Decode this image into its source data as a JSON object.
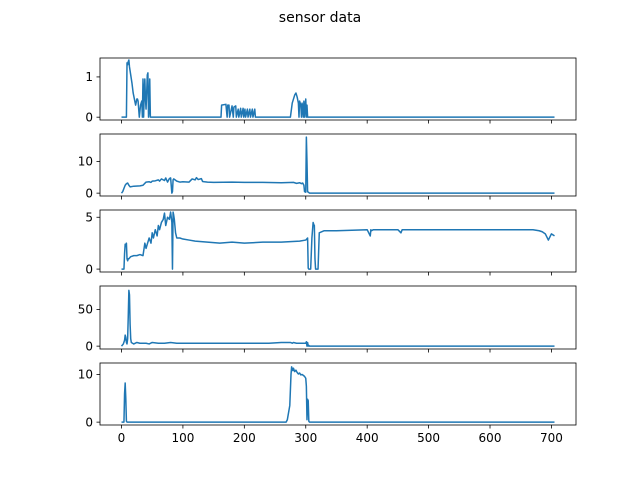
{
  "figure": {
    "title": "sensor data"
  },
  "style": {
    "series_color": "#1f77b4",
    "axis_color": "#000000",
    "background": "#ffffff"
  },
  "chart_data": [
    {
      "type": "line",
      "title": "",
      "xlabel": "",
      "ylabel": "",
      "grid": false,
      "xlim": [
        -35,
        740
      ],
      "ylim": [
        -0.07,
        1.47
      ],
      "xticks": [
        0,
        100,
        200,
        300,
        400,
        500,
        600,
        700
      ],
      "show_x_tick_labels": false,
      "yticks": [
        0,
        1
      ],
      "ytick_labels": [
        "0",
        "1"
      ],
      "series": [
        {
          "x": [
            0,
            8,
            9,
            10,
            11,
            12,
            13,
            15,
            17,
            19,
            21,
            23,
            25,
            26,
            27,
            29,
            31,
            33,
            34,
            35,
            36,
            37,
            38,
            39,
            40,
            41,
            42,
            43,
            44,
            45,
            46,
            47,
            48,
            60,
            100,
            130,
            150,
            162,
            163,
            170,
            172,
            173,
            175,
            176,
            180,
            182,
            183,
            186,
            187,
            190,
            191,
            194,
            195,
            198,
            199,
            201,
            202,
            205,
            206,
            209,
            210,
            213,
            214,
            217,
            218,
            270,
            275,
            278,
            280,
            282,
            284,
            286,
            288,
            289,
            290,
            292,
            293,
            294,
            295,
            296,
            297,
            298,
            300,
            301,
            302,
            303,
            304,
            305,
            310,
            400,
            500,
            600,
            700,
            705
          ],
          "y": [
            0,
            0,
            1.35,
            1.3,
            1.38,
            1.42,
            1.25,
            1.05,
            0.85,
            0.6,
            0.45,
            0.3,
            0.45,
            0.45,
            0.4,
            0.0,
            0.3,
            0.4,
            0.0,
            0.95,
            0.0,
            0.6,
            0.95,
            0.45,
            0.2,
            0.6,
            1.05,
            1.1,
            0.0,
            0.2,
            0.95,
            0.0,
            0,
            0,
            0,
            0,
            0,
            0,
            0.3,
            0.32,
            0.0,
            0.3,
            0.3,
            0.0,
            0.28,
            0.0,
            0.25,
            0.28,
            0.0,
            0.2,
            0.0,
            0.22,
            0.0,
            0.22,
            0.0,
            0.2,
            0.0,
            0.2,
            0.0,
            0.2,
            0.0,
            0.2,
            0.0,
            0.2,
            0.0,
            0.0,
            0.0,
            0.35,
            0.45,
            0.55,
            0.6,
            0.5,
            0.35,
            0.0,
            0.4,
            0.3,
            0.0,
            0.35,
            0.25,
            0.0,
            0.4,
            0.0,
            0.45,
            0.0,
            0.3,
            0.0,
            0.0,
            0.0,
            0,
            0,
            0,
            0,
            0,
            0
          ]
        }
      ]
    },
    {
      "type": "line",
      "title": "",
      "xlabel": "",
      "ylabel": "",
      "grid": false,
      "xlim": [
        -35,
        740
      ],
      "ylim": [
        -0.9,
        18.7
      ],
      "xticks": [
        0,
        100,
        200,
        300,
        400,
        500,
        600,
        700
      ],
      "show_x_tick_labels": false,
      "yticks": [
        0,
        10
      ],
      "ytick_labels": [
        "0",
        "10"
      ],
      "series": [
        {
          "x": [
            0,
            2,
            4,
            6,
            8,
            10,
            12,
            14,
            20,
            30,
            35,
            40,
            45,
            48,
            50,
            55,
            60,
            62,
            65,
            70,
            72,
            75,
            78,
            80,
            82,
            83,
            84,
            85,
            90,
            95,
            100,
            110,
            115,
            120,
            122,
            125,
            130,
            132,
            135,
            140,
            150,
            180,
            200,
            230,
            260,
            280,
            285,
            290,
            293,
            295,
            297,
            298,
            300,
            301,
            302,
            303,
            304,
            305,
            306,
            308,
            310,
            320,
            400,
            500,
            600,
            700,
            705
          ],
          "y": [
            0,
            0.5,
            1.5,
            2.5,
            3.0,
            3.2,
            2.5,
            2.0,
            2.2,
            2.3,
            2.5,
            3.5,
            3.6,
            3.4,
            3.8,
            3.9,
            4.2,
            3.8,
            4.5,
            4.0,
            4.8,
            3.5,
            4.6,
            4.8,
            0.0,
            0.5,
            4.2,
            4.5,
            3.8,
            3.5,
            3.6,
            3.5,
            4.5,
            4.2,
            4.9,
            4.3,
            4.6,
            3.7,
            3.6,
            3.5,
            3.4,
            3.5,
            3.4,
            3.4,
            3.3,
            3.4,
            3.1,
            3.3,
            3.0,
            3.2,
            2.5,
            0.5,
            0.3,
            17.7,
            10.0,
            0.5,
            0.3,
            0.2,
            0.0,
            0.0,
            0.0,
            0.0,
            0.0,
            0.0,
            0.0,
            0.0,
            0.0
          ]
        }
      ]
    },
    {
      "type": "line",
      "title": "",
      "xlabel": "",
      "ylabel": "",
      "grid": false,
      "xlim": [
        -35,
        740
      ],
      "ylim": [
        -0.28,
        5.7
      ],
      "xticks": [
        0,
        100,
        200,
        300,
        400,
        500,
        600,
        700
      ],
      "show_x_tick_labels": false,
      "yticks": [
        0,
        5
      ],
      "ytick_labels": [
        "0",
        "5"
      ],
      "series": [
        {
          "x": [
            0,
            4,
            5,
            6,
            7,
            8,
            9,
            10,
            11,
            12,
            15,
            20,
            25,
            30,
            35,
            38,
            40,
            42,
            45,
            48,
            50,
            52,
            55,
            58,
            60,
            62,
            65,
            68,
            70,
            72,
            75,
            78,
            80,
            82,
            83,
            84,
            85,
            86,
            88,
            90,
            95,
            100,
            110,
            120,
            140,
            160,
            180,
            200,
            230,
            260,
            290,
            300,
            303,
            304,
            305,
            306,
            308,
            310,
            312,
            313,
            314,
            315,
            316,
            318,
            320,
            322,
            330,
            350,
            400,
            405,
            406,
            407,
            410,
            450,
            455,
            457,
            460,
            500,
            600,
            650,
            660,
            670,
            680,
            685,
            690,
            695,
            700,
            705
          ],
          "y": [
            0,
            0,
            1.5,
            2.4,
            2.2,
            2.5,
            1.0,
            0.8,
            1.0,
            1.0,
            1.2,
            1.3,
            1.3,
            1.4,
            1.3,
            2.5,
            2.0,
            2.4,
            3.0,
            2.5,
            3.5,
            3.0,
            3.8,
            3.2,
            4.2,
            3.8,
            4.5,
            4.8,
            5.4,
            4.2,
            5.0,
            4.8,
            5.5,
            4.5,
            0.0,
            5.5,
            5.2,
            4.8,
            3.5,
            3.0,
            3.0,
            2.9,
            2.8,
            2.7,
            2.6,
            2.5,
            2.6,
            2.5,
            2.6,
            2.6,
            2.7,
            2.8,
            3.0,
            0.1,
            0.0,
            0.0,
            0.0,
            3.0,
            4.5,
            4.3,
            4.2,
            1.0,
            0.0,
            0.0,
            0.0,
            3.5,
            3.7,
            3.7,
            3.8,
            3.2,
            3.8,
            3.7,
            3.8,
            3.8,
            3.5,
            3.8,
            3.8,
            3.8,
            3.8,
            3.8,
            3.8,
            3.8,
            3.7,
            3.6,
            3.4,
            2.8,
            3.4,
            3.2
          ]
        }
      ]
    },
    {
      "type": "line",
      "title": "",
      "xlabel": "",
      "ylabel": "",
      "grid": false,
      "xlim": [
        -35,
        740
      ],
      "ylim": [
        -3.9,
        82
      ],
      "xticks": [
        0,
        100,
        200,
        300,
        400,
        500,
        600,
        700
      ],
      "show_x_tick_labels": false,
      "yticks": [
        0,
        50
      ],
      "ytick_labels": [
        "0",
        "50"
      ],
      "series": [
        {
          "x": [
            0,
            3,
            5,
            6,
            7,
            8,
            9,
            10,
            11,
            12,
            13,
            14,
            15,
            16,
            18,
            20,
            25,
            30,
            40,
            45,
            50,
            60,
            70,
            80,
            90,
            100,
            120,
            140,
            160,
            180,
            200,
            220,
            240,
            260,
            270,
            275,
            278,
            280,
            285,
            290,
            295,
            300,
            301,
            302,
            303,
            304,
            305,
            306,
            310,
            350,
            400,
            500,
            600,
            700,
            705
          ],
          "y": [
            0,
            3,
            8,
            15,
            12,
            5,
            3,
            10,
            40,
            76,
            70,
            30,
            10,
            5,
            4,
            3,
            5,
            4,
            4,
            3,
            5,
            4,
            4,
            5,
            4,
            4,
            4,
            4,
            4,
            4,
            4,
            4,
            4,
            5,
            5,
            5,
            4,
            5,
            4,
            4,
            4,
            4,
            6,
            0,
            5,
            0,
            1,
            0,
            0,
            0,
            0,
            0,
            0,
            0,
            0
          ]
        }
      ]
    },
    {
      "type": "line",
      "title": "",
      "xlabel": "",
      "ylabel": "",
      "grid": false,
      "xlim": [
        -35,
        740
      ],
      "ylim": [
        -0.6,
        12.4
      ],
      "xticks": [
        0,
        100,
        200,
        300,
        400,
        500,
        600,
        700
      ],
      "xtick_labels": [
        "0",
        "100",
        "200",
        "300",
        "400",
        "500",
        "600",
        "700"
      ],
      "show_x_tick_labels": true,
      "yticks": [
        0,
        10
      ],
      "ytick_labels": [
        "0",
        "10"
      ],
      "series": [
        {
          "x": [
            0,
            4,
            5,
            6,
            7,
            8,
            9,
            10,
            50,
            100,
            150,
            200,
            250,
            268,
            270,
            272,
            274,
            276,
            277,
            278,
            279,
            280,
            282,
            284,
            286,
            288,
            290,
            292,
            294,
            296,
            298,
            300,
            301,
            302,
            303,
            304,
            305,
            306,
            310,
            400,
            500,
            600,
            700,
            705
          ],
          "y": [
            0,
            0,
            6,
            8.2,
            5,
            0.2,
            0,
            0,
            0,
            0,
            0,
            0,
            0,
            0,
            0.5,
            2,
            3.5,
            10,
            11.6,
            11.2,
            10.8,
            11.3,
            10.6,
            10.9,
            10.4,
            10.1,
            10.3,
            9.9,
            10.0,
            9.8,
            9.6,
            9.2,
            7.5,
            0.5,
            4.8,
            4.5,
            0.2,
            0,
            0,
            0,
            0,
            0,
            0,
            0
          ]
        }
      ]
    }
  ]
}
